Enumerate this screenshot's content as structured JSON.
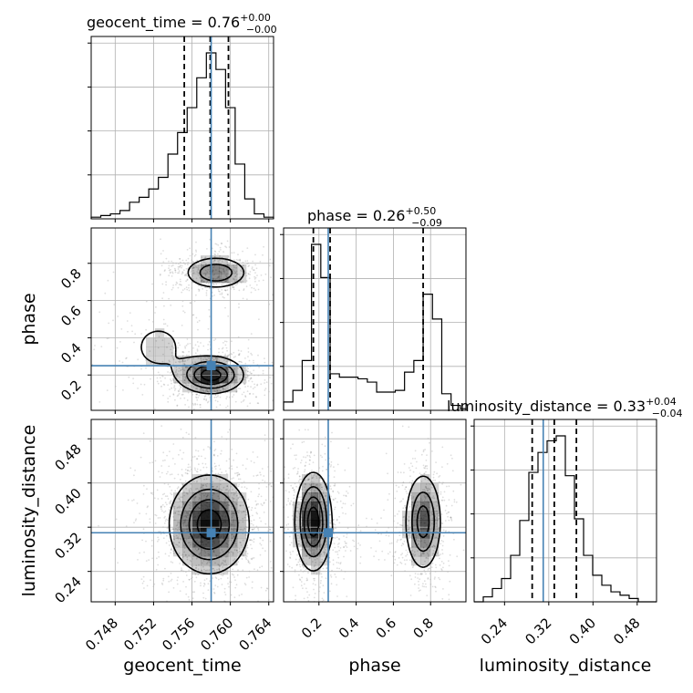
{
  "chart_data": {
    "type": "corner",
    "parameters": [
      "geocent_time",
      "phase",
      "luminosity_distance"
    ],
    "axis_labels": {
      "x": [
        "geocent_time",
        "phase",
        "luminosity_distance"
      ],
      "y": [
        "phase",
        "luminosity_distance"
      ]
    },
    "ranges": {
      "geocent_time": [
        0.7455,
        0.7645
      ],
      "phase": [
        0.01,
        0.99
      ],
      "luminosity_distance": [
        0.185,
        0.515
      ]
    },
    "ticks": {
      "geocent_time": [
        "0.748",
        "0.752",
        "0.756",
        "0.760",
        "0.764"
      ],
      "phase": [
        "0.2",
        "0.4",
        "0.6",
        "0.8"
      ],
      "luminosity_distance": [
        "0.24",
        "0.32",
        "0.40",
        "0.48"
      ]
    },
    "truths": {
      "geocent_time": 0.758,
      "phase": 0.25,
      "luminosity_distance": 0.31
    },
    "titles": [
      {
        "name": "geocent_time",
        "median": "0.76",
        "plus": "+0.00",
        "minus": "−0.00"
      },
      {
        "name": "phase",
        "median": "0.26",
        "plus": "+0.50",
        "minus": "−0.09"
      },
      {
        "name": "luminosity_distance",
        "median": "0.33",
        "plus": "+0.04",
        "minus": "−0.04"
      }
    ],
    "quantiles": {
      "geocent_time": [
        0.7552,
        0.7579,
        0.7598
      ],
      "phase": [
        0.17,
        0.26,
        0.76
      ],
      "luminosity_distance": [
        0.29,
        0.33,
        0.37
      ]
    },
    "histograms": {
      "geocent_time": {
        "edges": [
          0.7455,
          0.7465,
          0.7475,
          0.7485,
          0.7495,
          0.7505,
          0.7515,
          0.7525,
          0.7535,
          0.7545,
          0.7555,
          0.7565,
          0.7575,
          0.7585,
          0.7595,
          0.7605,
          0.7615,
          0.7625,
          0.7635,
          0.7645
        ],
        "counts": [
          0.01,
          0.02,
          0.03,
          0.05,
          0.1,
          0.13,
          0.18,
          0.25,
          0.39,
          0.52,
          0.67,
          0.85,
          1.0,
          0.9,
          0.67,
          0.33,
          0.12,
          0.03,
          0.01
        ]
      },
      "phase": {
        "edges": [
          0.01,
          0.06,
          0.11,
          0.16,
          0.21,
          0.26,
          0.31,
          0.36,
          0.41,
          0.46,
          0.51,
          0.56,
          0.61,
          0.66,
          0.71,
          0.76,
          0.81,
          0.86,
          0.91,
          0.96,
          0.99
        ],
        "counts": [
          0.05,
          0.12,
          0.3,
          1.0,
          0.8,
          0.22,
          0.2,
          0.2,
          0.19,
          0.17,
          0.11,
          0.11,
          0.12,
          0.23,
          0.3,
          0.7,
          0.55,
          0.1,
          0.03,
          0.01
        ]
      },
      "luminosity_distance": {
        "edges": [
          0.185,
          0.2015,
          0.218,
          0.2345,
          0.251,
          0.2675,
          0.284,
          0.3005,
          0.317,
          0.3335,
          0.35,
          0.3665,
          0.383,
          0.3995,
          0.416,
          0.4325,
          0.449,
          0.4655,
          0.482,
          0.4985,
          0.515
        ],
        "counts": [
          0.0,
          0.03,
          0.08,
          0.14,
          0.28,
          0.49,
          0.78,
          0.9,
          0.97,
          1.0,
          0.76,
          0.5,
          0.28,
          0.16,
          0.1,
          0.06,
          0.04,
          0.02,
          0.0,
          0.0
        ]
      }
    },
    "density_2d": [
      {
        "x": "geocent_time",
        "y": "phase",
        "modes": [
          {
            "x": 0.7585,
            "y": 0.75,
            "sx": 0.0017,
            "sy": 0.045,
            "w": 0.6
          },
          {
            "x": 0.758,
            "y": 0.2,
            "sx": 0.0017,
            "sy": 0.05,
            "w": 1.0
          },
          {
            "x": 0.7525,
            "y": 0.35,
            "sx": 0.0025,
            "sy": 0.12,
            "w": 0.18
          }
        ]
      },
      {
        "x": "geocent_time",
        "y": "luminosity_distance",
        "modes": [
          {
            "x": 0.7578,
            "y": 0.325,
            "sx": 0.0021,
            "sy": 0.045,
            "w": 1.0
          }
        ]
      },
      {
        "x": "phase",
        "y": "luminosity_distance",
        "modes": [
          {
            "x": 0.17,
            "y": 0.33,
            "sx": 0.05,
            "sy": 0.045,
            "w": 1.0
          },
          {
            "x": 0.76,
            "y": 0.33,
            "sx": 0.05,
            "sy": 0.045,
            "w": 0.75
          },
          {
            "x": 0.42,
            "y": 0.305,
            "sx": 0.09,
            "sy": 0.02,
            "w": 0.1
          }
        ]
      }
    ],
    "contour_levels": [
      0.14,
      0.37,
      0.61,
      0.84
    ],
    "colors": {
      "truth": "#4682b4",
      "lines": "#000000",
      "grid": "#b0b0b0",
      "points": "#000000"
    },
    "grid": true
  }
}
